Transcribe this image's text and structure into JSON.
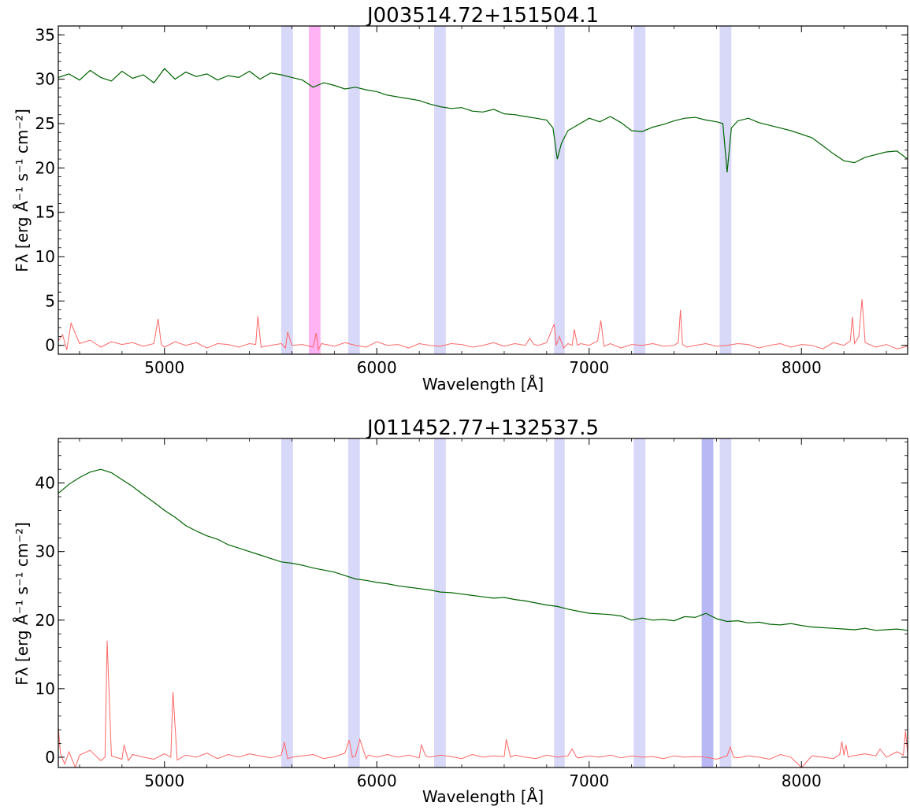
{
  "colors": {
    "spectrum": "#006400",
    "noise": "#ff6666",
    "sky_band": "#d8d8f8",
    "band_magenta": "#ffb3f5",
    "band_blue": "#b8b8f5"
  },
  "chart_data": [
    {
      "type": "line",
      "title": "J003514.72+151504.1",
      "xlabel": "Wavelength [Å]",
      "ylabel": "Fλ [erg Å⁻¹ s⁻¹ cm⁻²]",
      "xlim": [
        4500,
        8500
      ],
      "ylim": [
        -1,
        36
      ],
      "xticks": [
        5000,
        6000,
        7000,
        8000
      ],
      "yticks": [
        0,
        5,
        10,
        15,
        20,
        25,
        30,
        35
      ],
      "bands": [
        {
          "x0": 5550,
          "x1": 5605,
          "kind": "sky"
        },
        {
          "x0": 5680,
          "x1": 5735,
          "kind": "magenta"
        },
        {
          "x0": 5865,
          "x1": 5920,
          "kind": "sky"
        },
        {
          "x0": 6270,
          "x1": 6325,
          "kind": "sky"
        },
        {
          "x0": 6835,
          "x1": 6885,
          "kind": "sky"
        },
        {
          "x0": 7210,
          "x1": 7265,
          "kind": "sky"
        },
        {
          "x0": 7615,
          "x1": 7670,
          "kind": "sky"
        }
      ],
      "series": [
        {
          "role": "spectrum",
          "x": [
            4500,
            4550,
            4600,
            4650,
            4700,
            4750,
            4800,
            4850,
            4900,
            4950,
            5000,
            5050,
            5100,
            5150,
            5200,
            5250,
            5300,
            5350,
            5400,
            5450,
            5500,
            5550,
            5600,
            5650,
            5700,
            5750,
            5800,
            5850,
            5900,
            5950,
            6000,
            6050,
            6100,
            6150,
            6200,
            6250,
            6300,
            6350,
            6400,
            6450,
            6500,
            6550,
            6600,
            6650,
            6700,
            6750,
            6800,
            6830,
            6850,
            6870,
            6900,
            6950,
            7000,
            7050,
            7100,
            7150,
            7200,
            7250,
            7300,
            7350,
            7400,
            7450,
            7500,
            7550,
            7600,
            7630,
            7650,
            7670,
            7700,
            7750,
            7800,
            7850,
            7900,
            7950,
            8000,
            8050,
            8100,
            8150,
            8200,
            8250,
            8300,
            8350,
            8400,
            8450,
            8500
          ],
          "y": [
            30.2,
            30.6,
            29.9,
            31.0,
            30.2,
            29.8,
            30.9,
            30.1,
            30.5,
            29.6,
            31.2,
            30.0,
            30.8,
            30.3,
            30.6,
            29.9,
            30.4,
            30.2,
            30.9,
            30.0,
            30.7,
            30.5,
            30.2,
            29.9,
            29.1,
            29.6,
            29.3,
            28.9,
            29.1,
            28.8,
            28.6,
            28.2,
            28.0,
            27.8,
            27.6,
            27.2,
            26.9,
            26.7,
            26.8,
            26.4,
            26.3,
            26.6,
            26.1,
            26.0,
            25.8,
            25.6,
            25.4,
            24.5,
            21.0,
            22.8,
            24.2,
            24.9,
            25.6,
            25.2,
            25.8,
            25.1,
            24.2,
            24.1,
            24.6,
            24.9,
            25.3,
            25.6,
            25.7,
            25.4,
            25.2,
            25.0,
            19.5,
            24.5,
            25.3,
            25.6,
            25.1,
            24.8,
            24.5,
            24.2,
            23.8,
            23.4,
            22.5,
            21.6,
            20.8,
            20.6,
            21.2,
            21.5,
            21.8,
            21.9,
            21.0
          ]
        },
        {
          "role": "noise",
          "x": [
            4500,
            4520,
            4540,
            4560,
            4600,
            4650,
            4700,
            4750,
            4800,
            4850,
            4900,
            4950,
            4970,
            4985,
            5000,
            5050,
            5100,
            5150,
            5200,
            5250,
            5300,
            5350,
            5400,
            5430,
            5440,
            5455,
            5500,
            5550,
            5570,
            5580,
            5600,
            5650,
            5700,
            5715,
            5725,
            5740,
            5800,
            5850,
            5900,
            5950,
            6000,
            6050,
            6100,
            6150,
            6200,
            6250,
            6300,
            6350,
            6400,
            6450,
            6500,
            6550,
            6600,
            6650,
            6700,
            6720,
            6740,
            6760,
            6800,
            6835,
            6845,
            6860,
            6880,
            6900,
            6920,
            6930,
            6945,
            6960,
            7000,
            7040,
            7055,
            7070,
            7100,
            7150,
            7200,
            7250,
            7300,
            7350,
            7400,
            7420,
            7430,
            7440,
            7460,
            7500,
            7550,
            7600,
            7650,
            7700,
            7750,
            7800,
            7850,
            7900,
            7950,
            8000,
            8050,
            8100,
            8150,
            8200,
            8230,
            8240,
            8250,
            8270,
            8285,
            8300,
            8350,
            8400,
            8450,
            8500
          ],
          "y": [
            0.5,
            1.2,
            -0.5,
            2.5,
            0.2,
            0.6,
            -0.2,
            0.4,
            0.1,
            0.3,
            -0.1,
            0.2,
            3.0,
            0.1,
            -0.2,
            0.4,
            0.0,
            0.3,
            -0.3,
            0.2,
            0.1,
            -0.2,
            0.2,
            0.1,
            3.3,
            -0.2,
            0.0,
            0.2,
            -0.3,
            1.5,
            0.0,
            0.1,
            -0.2,
            1.4,
            -0.5,
            0.2,
            -0.1,
            0.3,
            0.0,
            -0.2,
            0.4,
            0.0,
            0.1,
            -0.3,
            0.2,
            0.0,
            -0.1,
            0.2,
            0.1,
            -0.2,
            0.0,
            0.3,
            -0.1,
            0.2,
            0.0,
            0.8,
            0.1,
            0.0,
            0.3,
            2.4,
            0.0,
            1.0,
            -0.3,
            0.2,
            0.0,
            1.8,
            0.0,
            0.2,
            0.0,
            0.5,
            2.8,
            -0.1,
            0.2,
            -0.3,
            0.1,
            0.0,
            0.2,
            -0.1,
            0.0,
            0.3,
            4.0,
            0.1,
            -0.2,
            0.0,
            0.2,
            -0.1,
            0.0,
            0.2,
            0.1,
            -0.3,
            0.0,
            0.2,
            -0.2,
            0.1,
            0.0,
            -0.4,
            0.3,
            0.0,
            0.5,
            3.2,
            0.2,
            1.0,
            5.2,
            0.3,
            -0.2,
            0.1,
            -0.4,
            -0.1
          ]
        }
      ]
    },
    {
      "type": "line",
      "title": "J011452.77+132537.5",
      "xlabel": "Wavelength [Å]",
      "ylabel": "Fλ [erg Å⁻¹ s⁻¹ cm⁻²]",
      "xlim": [
        4500,
        8500
      ],
      "ylim": [
        -1.5,
        46.5
      ],
      "xticks": [
        5000,
        6000,
        7000,
        8000
      ],
      "yticks": [
        0,
        10,
        20,
        30,
        40
      ],
      "bands": [
        {
          "x0": 5550,
          "x1": 5605,
          "kind": "sky"
        },
        {
          "x0": 5865,
          "x1": 5920,
          "kind": "sky"
        },
        {
          "x0": 6270,
          "x1": 6325,
          "kind": "sky"
        },
        {
          "x0": 6835,
          "x1": 6885,
          "kind": "sky"
        },
        {
          "x0": 7210,
          "x1": 7265,
          "kind": "sky"
        },
        {
          "x0": 7530,
          "x1": 7585,
          "kind": "blue"
        },
        {
          "x0": 7615,
          "x1": 7670,
          "kind": "sky"
        }
      ],
      "series": [
        {
          "role": "spectrum",
          "x": [
            4500,
            4550,
            4600,
            4650,
            4700,
            4750,
            4800,
            4850,
            4900,
            4950,
            5000,
            5050,
            5100,
            5150,
            5200,
            5250,
            5300,
            5350,
            5400,
            5450,
            5500,
            5550,
            5600,
            5650,
            5700,
            5750,
            5800,
            5850,
            5900,
            5950,
            6000,
            6050,
            6100,
            6150,
            6200,
            6250,
            6300,
            6350,
            6400,
            6450,
            6500,
            6550,
            6600,
            6650,
            6700,
            6750,
            6800,
            6850,
            6900,
            6950,
            7000,
            7050,
            7100,
            7150,
            7200,
            7250,
            7300,
            7350,
            7400,
            7450,
            7500,
            7550,
            7600,
            7650,
            7700,
            7750,
            7800,
            7850,
            7900,
            7950,
            8000,
            8050,
            8100,
            8150,
            8200,
            8250,
            8300,
            8350,
            8400,
            8450,
            8500
          ],
          "y": [
            38.5,
            39.8,
            40.8,
            41.6,
            42.0,
            41.5,
            40.5,
            39.5,
            38.3,
            37.2,
            36.0,
            35.0,
            33.8,
            33.0,
            32.3,
            31.8,
            31.0,
            30.5,
            30.0,
            29.5,
            29.0,
            28.5,
            28.3,
            28.0,
            27.6,
            27.3,
            27.0,
            26.5,
            26.0,
            25.8,
            25.5,
            25.3,
            25.0,
            24.8,
            24.6,
            24.4,
            24.1,
            24.0,
            23.8,
            23.6,
            23.4,
            23.2,
            23.3,
            23.0,
            22.8,
            22.5,
            22.2,
            22.0,
            21.6,
            21.3,
            21.0,
            20.9,
            20.8,
            20.6,
            20.0,
            20.3,
            20.0,
            20.1,
            19.9,
            20.5,
            20.4,
            21.0,
            20.2,
            19.8,
            19.9,
            19.6,
            19.7,
            19.4,
            19.3,
            19.5,
            19.2,
            19.0,
            18.9,
            18.8,
            18.7,
            18.6,
            18.8,
            18.5,
            18.6,
            18.7,
            18.5
          ]
        },
        {
          "role": "noise",
          "x": [
            4500,
            4510,
            4530,
            4550,
            4580,
            4600,
            4650,
            4700,
            4720,
            4730,
            4750,
            4800,
            4810,
            4830,
            4850,
            4900,
            4950,
            5000,
            5030,
            5040,
            5060,
            5100,
            5150,
            5200,
            5250,
            5300,
            5350,
            5400,
            5450,
            5500,
            5550,
            5565,
            5580,
            5600,
            5650,
            5700,
            5750,
            5800,
            5850,
            5870,
            5885,
            5900,
            5920,
            5950,
            5960,
            6000,
            6050,
            6100,
            6150,
            6200,
            6210,
            6230,
            6250,
            6300,
            6350,
            6400,
            6450,
            6500,
            6550,
            6600,
            6610,
            6630,
            6650,
            6700,
            6750,
            6800,
            6850,
            6900,
            6920,
            6940,
            6950,
            7000,
            7050,
            7100,
            7150,
            7200,
            7250,
            7300,
            7350,
            7400,
            7450,
            7500,
            7550,
            7600,
            7650,
            7665,
            7680,
            7700,
            7750,
            7800,
            7850,
            7900,
            7950,
            8000,
            8050,
            8100,
            8150,
            8180,
            8190,
            8200,
            8210,
            8220,
            8240,
            8300,
            8350,
            8370,
            8400,
            8450,
            8480,
            8490,
            8500
          ],
          "y": [
            4.5,
            0.5,
            -1.0,
            0.8,
            -1.5,
            0.3,
            1.0,
            -0.5,
            0.0,
            17.0,
            0.2,
            -0.3,
            1.8,
            -0.5,
            0.4,
            0.0,
            -0.3,
            0.5,
            0.0,
            9.5,
            -0.4,
            0.3,
            0.0,
            0.6,
            -0.2,
            0.4,
            0.0,
            0.5,
            0.2,
            -0.1,
            0.3,
            2.2,
            -0.2,
            0.0,
            0.2,
            0.4,
            -0.2,
            0.1,
            0.6,
            2.5,
            0.0,
            0.2,
            2.6,
            -0.2,
            0.3,
            0.0,
            0.4,
            0.0,
            0.3,
            -0.1,
            1.8,
            0.2,
            0.0,
            0.3,
            0.1,
            -0.2,
            0.4,
            0.0,
            0.2,
            0.1,
            2.6,
            0.0,
            0.3,
            0.0,
            -0.2,
            0.3,
            0.0,
            0.2,
            1.2,
            0.0,
            -0.1,
            0.2,
            0.0,
            0.3,
            -0.1,
            0.2,
            0.0,
            0.1,
            -0.2,
            0.2,
            0.0,
            0.1,
            0.0,
            -0.3,
            0.2,
            1.5,
            0.0,
            -0.1,
            0.2,
            0.0,
            -0.3,
            0.4,
            0.0,
            -1.5,
            0.2,
            0.0,
            -0.2,
            0.4,
            2.3,
            0.3,
            1.8,
            0.0,
            0.2,
            0.5,
            0.2,
            1.2,
            0.0,
            0.8,
            0.3,
            3.8,
            0.5
          ]
        }
      ]
    }
  ]
}
